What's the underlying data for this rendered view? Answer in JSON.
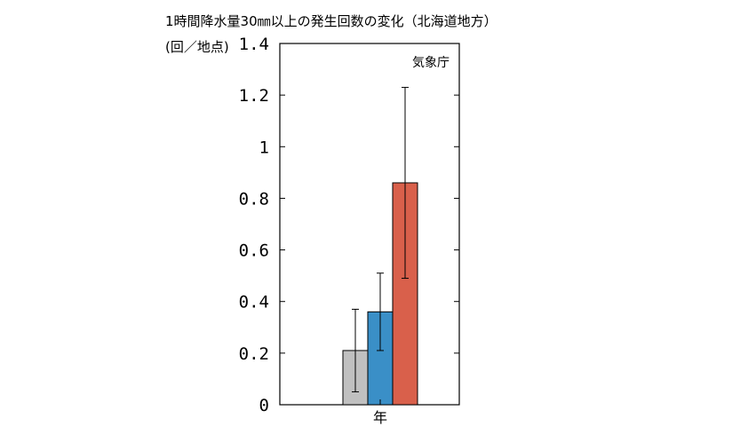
{
  "chart_data": {
    "type": "bar",
    "title": "1時間降水量30㎜以上の発生回数の変化（北海道地方）",
    "ylabel": "(回／地点)",
    "source": "気象庁",
    "categories": [
      "年"
    ],
    "ylim": [
      0,
      1.4
    ],
    "yticks": [
      "0",
      "0.2",
      "0.4",
      "0.6",
      "0.8",
      "1",
      "1.2",
      "1.4"
    ],
    "series": [
      {
        "values": [
          0.21
        ],
        "error_low": [
          0.05
        ],
        "error_high": [
          0.37
        ],
        "color": "#c0c0c0"
      },
      {
        "values": [
          0.36
        ],
        "error_low": [
          0.21
        ],
        "error_high": [
          0.51
        ],
        "color": "#3a8fc7"
      },
      {
        "values": [
          0.86
        ],
        "error_low": [
          0.49
        ],
        "error_high": [
          1.23
        ],
        "color": "#d9604b"
      }
    ],
    "grid": false,
    "legend": "none"
  }
}
